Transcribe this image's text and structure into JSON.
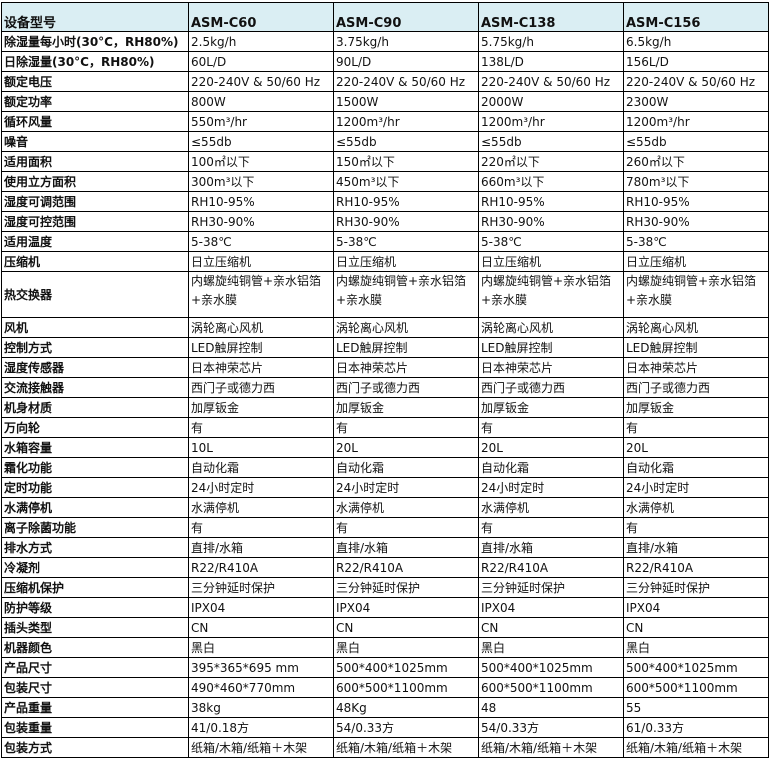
{
  "header": [
    "设备型号",
    "ASM-C60",
    "ASM-C90",
    "ASM-C138",
    "ASM-C156"
  ],
  "rows": [
    [
      "除湿量每小时(30°C，RH80%)",
      "2.5kg/h",
      "3.75kg/h",
      "5.75kg/h",
      "6.5kg/h"
    ],
    [
      "日除湿量(30°C，RH80%)",
      "60L/D",
      "90L/D",
      "138L/D",
      "156L/D"
    ],
    [
      "额定电压",
      "220-240V & 50/60 Hz",
      "220-240V & 50/60 Hz",
      "220-240V & 50/60 Hz",
      "220-240V & 50/60 Hz"
    ],
    [
      "额定功率",
      "800W",
      "1500W",
      "2000W",
      "2300W"
    ],
    [
      "循环风量",
      "550m³/hr",
      "1200m³/hr",
      "1200m³/hr",
      "1200m³/hr"
    ],
    [
      "噪音",
      "≤55db",
      "≤55db",
      "≤55db",
      "≤55db"
    ],
    [
      "适用面积",
      "100㎡以下",
      "150㎡以下",
      "220㎡以下",
      "260㎡以下"
    ],
    [
      "使用立方面积",
      "300m³以下",
      "450m³以下",
      "660m³以下",
      "780m³以下"
    ],
    [
      "湿度可调范围",
      "RH10-95%",
      "RH10-95%",
      "RH10-95%",
      "RH10-95%"
    ],
    [
      "湿度可控范围",
      "RH30-90%",
      "RH30-90%",
      "RH30-90%",
      "RH30-90%"
    ],
    [
      "适用温度",
      "5-38℃",
      "5-38℃",
      "5-38℃",
      "5-38℃"
    ],
    [
      "压缩机",
      "日立压缩机",
      "日立压缩机",
      "日立压缩机",
      "日立压缩机"
    ],
    [
      "热交换器",
      "内螺旋纯铜管+亲水铝箔+亲水膜",
      "内螺旋纯铜管+亲水铝箔+亲水膜",
      "内螺旋纯铜管+亲水铝箔+亲水膜",
      "内螺旋纯铜管+亲水铝箔+亲水膜"
    ],
    [
      "风机",
      "涡轮离心风机",
      "涡轮离心风机",
      "涡轮离心风机",
      "涡轮离心风机"
    ],
    [
      "控制方式",
      "LED触屏控制",
      "LED触屏控制",
      "LED触屏控制",
      "LED触屏控制"
    ],
    [
      "湿度传感器",
      "日本神荣芯片",
      "日本神荣芯片",
      "日本神荣芯片",
      "日本神荣芯片"
    ],
    [
      "交流接触器",
      "西门子或德力西",
      "西门子或德力西",
      "西门子或德力西",
      "西门子或德力西"
    ],
    [
      "机身材质",
      "加厚钣金",
      "加厚钣金",
      "加厚钣金",
      "加厚钣金"
    ],
    [
      "万向轮",
      "有",
      "有",
      "有",
      "有"
    ],
    [
      "水箱容量",
      "10L",
      "20L",
      "20L",
      "20L"
    ],
    [
      "霜化功能",
      "自动化霜",
      "自动化霜",
      "自动化霜",
      "自动化霜"
    ],
    [
      "定时功能",
      "24小时定时",
      "24小时定时",
      "24小时定时",
      "24小时定时"
    ],
    [
      "水满停机",
      "水满停机",
      "水满停机",
      "水满停机",
      "水满停机"
    ],
    [
      "离子除菌功能",
      "有",
      "有",
      "有",
      "有"
    ],
    [
      "排水方式",
      "直排/水箱",
      "直排/水箱",
      "直排/水箱",
      "直排/水箱"
    ],
    [
      "冷凝剂",
      "R22/R410A",
      "R22/R410A",
      "R22/R410A",
      "R22/R410A"
    ],
    [
      "压缩机保护",
      "三分钟延时保护",
      "三分钟延时保护",
      "三分钟延时保护",
      "三分钟延时保护"
    ],
    [
      "防护等级",
      "IPX04",
      "IPX04",
      "IPX04",
      "IPX04"
    ],
    [
      "插头类型",
      "CN",
      "CN",
      "CN",
      "CN"
    ],
    [
      "机器颜色",
      "黑白",
      "黑白",
      "黑白",
      "黑白"
    ],
    [
      "产品尺寸",
      "395*365*695 mm",
      "500*400*1025mm",
      "500*400*1025mm",
      "500*400*1025mm"
    ],
    [
      "包装尺寸",
      "490*460*770mm",
      "600*500*1100mm",
      "600*500*1100mm",
      "600*500*1100mm"
    ],
    [
      "产品重量",
      "38kg",
      "48Kg",
      "48",
      "55"
    ],
    [
      "包装重量",
      "41/0.18方",
      "54/0.33方",
      "54/0.33方",
      "61/0.33方"
    ],
    [
      "包装方式",
      "纸箱/木箱/纸箱＋木架",
      "纸箱/木箱/纸箱＋木架",
      "纸箱/木箱/纸箱＋木架",
      "纸箱/木箱/纸箱＋木架"
    ]
  ]
}
